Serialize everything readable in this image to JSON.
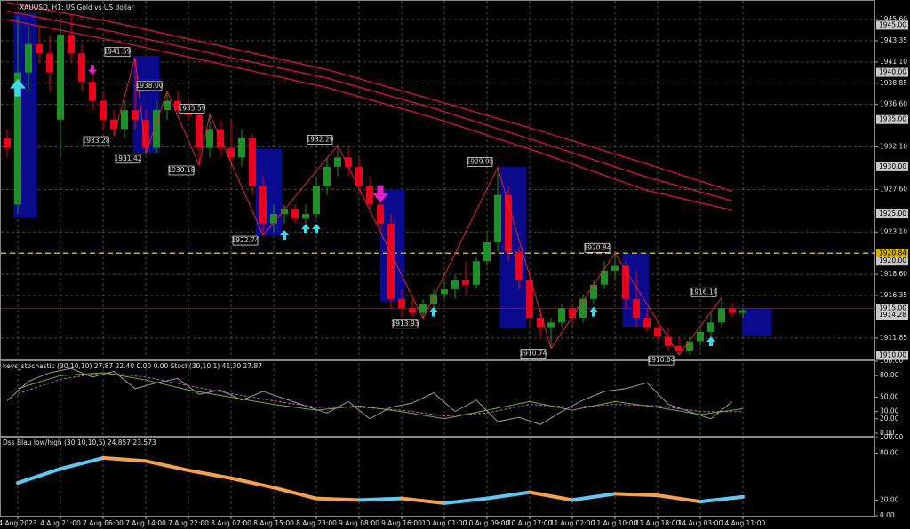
{
  "chart_data": [
    {
      "type": "candlestick",
      "title": "XAUUSD, H1:  US Gold vs US dollar",
      "categories": [
        null,
        "4 Aug 2023",
        null,
        null,
        null,
        "4 Aug 21:00",
        null,
        null,
        null,
        "7 Aug 06:00",
        null,
        null,
        null,
        "7 Aug 14:00",
        null,
        null,
        null,
        "7 Aug 22:00",
        null,
        null,
        null,
        "8 Aug 07:00",
        null,
        null,
        null,
        "8 Aug 15:00",
        null,
        null,
        null,
        "8 Aug 23:00",
        null,
        null,
        null,
        "9 Aug 08:00",
        null,
        null,
        null,
        "9 Aug 16:00",
        null,
        null,
        null,
        "10 Aug 01:00",
        null,
        null,
        null,
        "10 Aug 09:00",
        null,
        null,
        null,
        "10 Aug 17:00",
        null,
        null,
        null,
        "11 Aug 02:00",
        null,
        null,
        null,
        "11 Aug 10:00",
        null,
        null,
        null,
        "11 Aug 18:00",
        null,
        null,
        null,
        "14 Aug 03:00",
        null,
        null,
        null,
        "14 Aug 11:00"
      ],
      "open": [
        1933,
        1926,
        1940,
        1943,
        1942,
        1935,
        1944,
        1942,
        1939,
        1937,
        1935,
        1934,
        1936,
        1935,
        1932,
        1936,
        1937,
        1936,
        1935.5,
        1932,
        1934,
        1932,
        1931,
        1933,
        1928,
        1924,
        1925,
        1925.5,
        1924.5,
        1925,
        1928,
        1930,
        1931,
        1930,
        1928,
        1926,
        1924,
        1916,
        1915,
        1914.5,
        1915.5,
        1916.5,
        1917,
        1918,
        1917.5,
        1920,
        1922,
        1927,
        1921,
        1918,
        1914,
        1913,
        1913.5,
        1915,
        1914,
        1916,
        1917.5,
        1919,
        1919.5,
        1916,
        1914,
        1913,
        1912,
        1911,
        1910.5,
        1911.5,
        1912.5,
        1913.5,
        1915,
        1914.5
      ],
      "high": [
        1934,
        1946,
        1945,
        1945,
        1944,
        1945,
        1946,
        1943,
        1940,
        1938,
        1936,
        1937,
        1941.59,
        1936,
        1937,
        1938,
        1938,
        1937,
        1936,
        1935.59,
        1935,
        1935,
        1934,
        1933.5,
        1929,
        1926,
        1926,
        1926,
        1926,
        1929,
        1931,
        1932.29,
        1932,
        1931,
        1929,
        1927,
        1925,
        1917,
        1916,
        1916,
        1917,
        1918,
        1918.5,
        1920,
        1920.5,
        1923,
        1929.95,
        1928,
        1921.5,
        1919,
        1915,
        1914,
        1915.5,
        1915.5,
        1916.5,
        1918,
        1920,
        1920.84,
        1920,
        1919,
        1915,
        1913.5,
        1913,
        1912,
        1912,
        1913,
        1914.5,
        1916.14,
        1915.5,
        1915
      ],
      "low": [
        1931,
        1925,
        1938,
        1941,
        1938,
        1931,
        1941,
        1938,
        1936,
        1934,
        1933.28,
        1933,
        1934,
        1931.42,
        1931.5,
        1935,
        1935.5,
        1935,
        1930.18,
        1931,
        1931,
        1930,
        1930,
        1927,
        1922.74,
        1923,
        1924,
        1924,
        1923.5,
        1924.5,
        1927,
        1929,
        1929,
        1927,
        1925.5,
        1923,
        1915,
        1914,
        1914,
        1913.93,
        1915,
        1916,
        1916,
        1916.5,
        1917,
        1919.5,
        1921,
        1920,
        1917,
        1913,
        1912,
        1910.74,
        1913,
        1913,
        1913.5,
        1915.5,
        1917,
        1918,
        1915,
        1913,
        1912.5,
        1911.5,
        1910.5,
        1910.04,
        1910,
        1911,
        1912,
        1913,
        1914,
        1914
      ],
      "close": [
        1932,
        1940,
        1943,
        1942,
        1940,
        1944,
        1942,
        1939,
        1937,
        1935,
        1934,
        1936,
        1935,
        1932,
        1936,
        1937,
        1936,
        1935.5,
        1932,
        1934,
        1932,
        1931,
        1933,
        1928,
        1924,
        1925,
        1925.5,
        1924.5,
        1925,
        1928,
        1930,
        1931,
        1930,
        1928,
        1926,
        1924,
        1916,
        1915,
        1914.5,
        1915.5,
        1916.5,
        1917,
        1918,
        1917.5,
        1920,
        1922,
        1927,
        1921,
        1918,
        1914,
        1913,
        1913.5,
        1915,
        1914,
        1916,
        1917.5,
        1919,
        1919.5,
        1916,
        1914,
        1913,
        1912,
        1911,
        1910.5,
        1911.5,
        1912.5,
        1913.5,
        1915,
        1914.5,
        1914.8
      ],
      "up_color": "#1f8f2a",
      "down_color": "#e8001c",
      "ylim": [
        1909.58,
        1946.92
      ],
      "yticks": [
        1911.85,
        {
          "value": 1918.6,
          "label": "1918.60"
        },
        1916.35,
        {
          "value": 1923.1,
          "label": "1923.10"
        },
        {
          "value": 1927.6,
          "label": "1927.60"
        },
        {
          "value": 1932.1,
          "label": "1932.10"
        },
        {
          "value": 1936.6,
          "label": "1936.60"
        },
        1938.85,
        {
          "value": 1941.1,
          "label": "1941.10"
        },
        1943.35,
        {
          "value": 1945.6,
          "label": "1945.60"
        }
      ],
      "grid": true,
      "levels": [
        {
          "value": 1945,
          "label": "1945.00"
        },
        {
          "value": 1940,
          "label": "1940.00"
        },
        {
          "value": 1935,
          "label": "1935.00"
        },
        {
          "value": 1930,
          "label": "1930.00"
        },
        {
          "value": 1925,
          "label": "1925.00"
        },
        {
          "value": 1920.84,
          "label": "1920.84",
          "color": "#d4b000"
        },
        {
          "value": 1920,
          "label": "1920.00"
        },
        {
          "value": 1915,
          "label": "1915.00",
          "color": "#b00020"
        },
        {
          "value": 1914.28,
          "label": "1914.28"
        },
        {
          "value": 1910,
          "label": "1910.00"
        }
      ],
      "moving_averages": [
        {
          "color": "#d0103a",
          "x": [
            0,
            10,
            20,
            30,
            40,
            50,
            60,
            68
          ],
          "values": [
            1947.4,
            1945.3,
            1942.8,
            1940.3,
            1937.1,
            1933.8,
            1930.3,
            1927.4
          ]
        },
        {
          "color": "#d0103a",
          "x": [
            0,
            10,
            20,
            30,
            40,
            50,
            60,
            68
          ],
          "values": [
            1946.5,
            1944.3,
            1941.8,
            1939.4,
            1936.2,
            1932.6,
            1928.9,
            1926.4
          ]
        },
        {
          "color": "#d0103a",
          "x": [
            0,
            10,
            20,
            30,
            40,
            50,
            60,
            68
          ],
          "values": [
            1945.6,
            1943.35,
            1940.9,
            1938.4,
            1935.2,
            1931.5,
            1927.5,
            1925.4
          ]
        }
      ],
      "zigzag": {
        "color": "#e0203a",
        "x": [
          10,
          12,
          13,
          15,
          18,
          19,
          24,
          31,
          39,
          46,
          51,
          57,
          63,
          67
        ],
        "values": [
          1933.28,
          1941.59,
          1931.42,
          1938,
          1930.18,
          1935.59,
          1922.74,
          1932.29,
          1913.93,
          1929.95,
          1910.74,
          1920.84,
          1910.04,
          1916.14
        ],
        "value_labels": [
          "1933.28",
          "1941.59",
          "1931.42",
          "1938.00",
          "1930.18",
          "1935.59",
          "1922.74",
          "1932.29",
          "1913.93",
          "1929.95",
          "1910.74",
          "1920.84",
          "1910.04",
          "1916.14"
        ]
      },
      "boxes": {
        "color": "#0a0a8c",
        "x0": [
          0.6,
          11.8,
          23.3,
          35,
          46.2,
          57.7,
          68.9
        ],
        "x1": [
          2.8,
          14.3,
          25.8,
          37.3,
          48.7,
          60.2,
          71.7
        ],
        "low": [
          1924.6,
          1931.5,
          1922.75,
          1915.7,
          1912.9,
          1913.06,
          1912.1
        ],
        "high": [
          1946.3,
          1941.75,
          1931.9,
          1927.6,
          1930,
          1920.85,
          1915
        ]
      },
      "arrows_up": {
        "color": "#3fd8e8",
        "x": [
          1,
          26,
          28,
          29,
          40,
          55,
          66
        ],
        "values": [
          1938.3,
          1922.75,
          1923.4,
          1923.4,
          1914.6,
          1914.6,
          1911.46
        ]
      },
      "arrows_down": {
        "color": "#e020c0",
        "x": [
          8,
          35
        ],
        "values": [
          1940.3,
          1927.2
        ]
      }
    },
    {
      "type": "line",
      "title": "keys_stochastic (30,10,10) 27.87 22.40 0.00 0.00 Stoch(30,10,1) 41.30 27.87",
      "ylim": [
        0,
        100
      ],
      "yticks": [
        {
          "value": 0,
          "label": "0.00"
        },
        {
          "value": 20,
          "label": "20.00"
        },
        {
          "value": 30,
          "label": "30.00"
        },
        {
          "value": 50,
          "label": "50.00"
        },
        {
          "value": 80,
          "label": "80.00"
        },
        {
          "value": 100,
          "label": "100.00"
        }
      ],
      "series": [
        {
          "color": "#9a9a9a",
          "x": [
            0,
            2,
            4,
            6,
            8,
            10,
            12,
            14,
            16,
            18,
            20,
            22,
            24,
            26,
            28,
            30,
            32,
            34,
            36,
            38,
            40,
            42,
            44,
            46,
            48,
            50,
            52,
            54,
            56,
            58,
            60,
            62,
            64,
            66,
            68
          ],
          "values": [
            45,
            72,
            84,
            90,
            78,
            86,
            62,
            70,
            76,
            54,
            60,
            46,
            58,
            48,
            38,
            28,
            44,
            20,
            36,
            42,
            56,
            30,
            46,
            16,
            22,
            12,
            30,
            46,
            58,
            62,
            70,
            40,
            30,
            20,
            44
          ]
        },
        {
          "color": "#c060c0",
          "dash": true,
          "x": [
            1,
            5,
            9,
            13,
            17,
            21,
            25,
            29,
            33,
            37,
            41,
            45,
            49,
            53,
            57,
            61,
            65,
            69
          ],
          "values": [
            55,
            75,
            84,
            78,
            66,
            55,
            45,
            36,
            36,
            32,
            24,
            28,
            40,
            36,
            40,
            38,
            30,
            30
          ]
        },
        {
          "color": "#6fae3a",
          "x": [
            1,
            5,
            9,
            13,
            17,
            21,
            25,
            29,
            33,
            37,
            41,
            45,
            49,
            53,
            57,
            61,
            65,
            69
          ],
          "values": [
            62,
            80,
            84,
            74,
            60,
            50,
            40,
            32,
            38,
            30,
            20,
            32,
            44,
            32,
            44,
            36,
            26,
            34
          ]
        }
      ]
    },
    {
      "type": "dss",
      "title": "Dss Blau low/high (30,10,10,5) 24.857 23.573",
      "ylim": [
        0,
        100
      ],
      "yticks": [
        {
          "value": 0,
          "label": "0.00"
        },
        {
          "value": 20,
          "label": "20.00"
        },
        {
          "value": 80,
          "label": "80.00"
        },
        {
          "value": 100,
          "label": "100.00"
        }
      ],
      "series": [
        {
          "up_color": "#5ec8f0",
          "down_color": "#f5a04a",
          "x": [
            1,
            5,
            9,
            13,
            17,
            21,
            25,
            29,
            33,
            37,
            41,
            45,
            49,
            53,
            57,
            61,
            65,
            69
          ],
          "values": [
            42,
            60,
            74,
            70,
            58,
            48,
            36,
            22,
            20,
            22,
            16,
            22,
            30,
            20,
            28,
            26,
            18,
            24
          ]
        }
      ]
    }
  ]
}
